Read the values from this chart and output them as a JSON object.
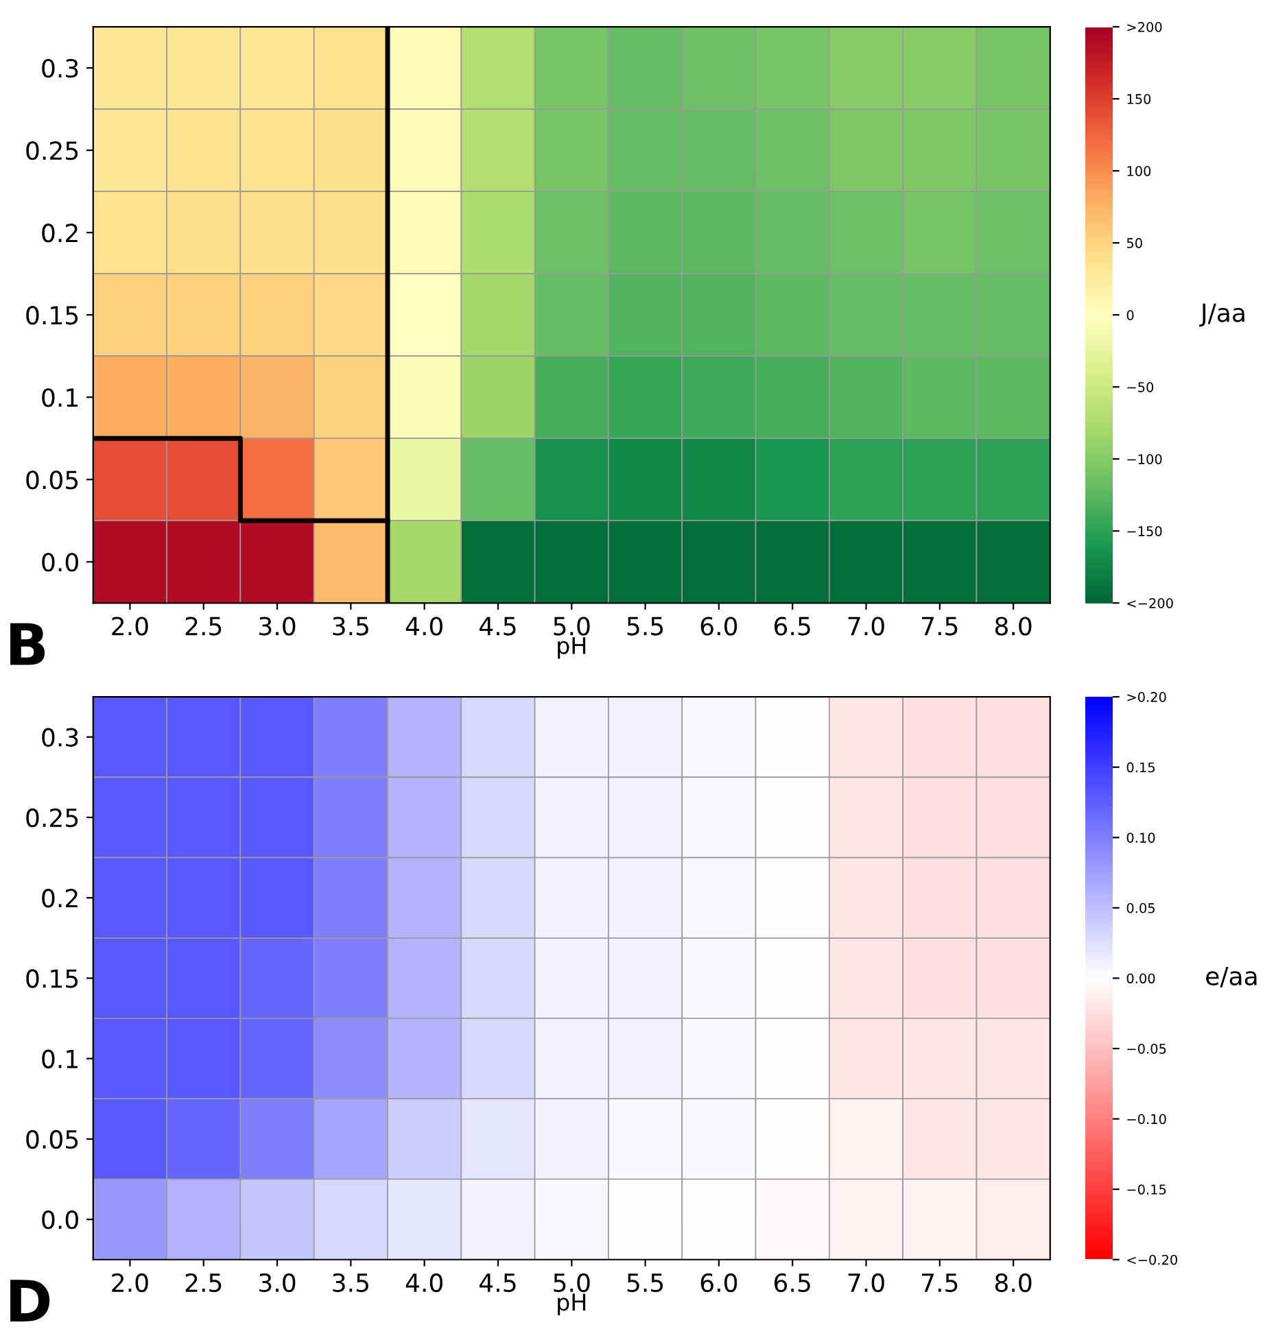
{
  "chart_data": [
    {
      "type": "heatmap",
      "xlabel": "pH",
      "clabel": "J/aa",
      "annotations": [
        "B"
      ],
      "x": [
        2.0,
        2.5,
        3.0,
        3.5,
        4.0,
        4.5,
        5.0,
        5.5,
        6.0,
        6.5,
        7.0,
        7.5,
        8.0
      ],
      "xlim": [
        1.75,
        8.25
      ],
      "xticks": [
        {
          "value": 2,
          "label": "2.0"
        },
        2.5,
        {
          "value": 3,
          "label": "3.0"
        },
        3.5,
        {
          "value": 4,
          "label": "4.0"
        },
        4.5,
        {
          "value": 5,
          "label": "5.0"
        },
        5.5,
        {
          "value": 6,
          "label": "6.0"
        },
        6.5,
        {
          "value": 7,
          "label": "7.0"
        },
        7.5,
        {
          "value": 8,
          "label": "8.0"
        }
      ],
      "ref_lines": [
        {
          "axis": "x",
          "value": 3.75,
          "color": "#000000"
        }
      ],
      "y": [
        0.3,
        0.25,
        0.2,
        0.15,
        0.1,
        0.05,
        0.0
      ],
      "ylim": [
        -0.025,
        0.325
      ],
      "yticks": [
        0.3,
        0.25,
        0.2,
        0.15,
        0.1,
        0.05,
        {
          "value": 0,
          "label": "0.0"
        }
      ],
      "series": [
        {
          "type": "line",
          "color": "#000000",
          "x": [
            1.75,
            2.75,
            2.75,
            3.75
          ],
          "values": [
            0.075,
            0.075,
            0.025,
            0.025
          ]
        }
      ],
      "cells": [
        [
          30,
          30,
          30,
          35,
          5,
          -70,
          -110,
          -120,
          -115,
          -110,
          -100,
          -100,
          -110
        ],
        [
          30,
          35,
          35,
          40,
          5,
          -70,
          -110,
          -120,
          -120,
          -115,
          -105,
          -105,
          -110
        ],
        [
          35,
          40,
          40,
          40,
          5,
          -75,
          -115,
          -125,
          -125,
          -120,
          -115,
          -110,
          -115
        ],
        [
          50,
          50,
          50,
          45,
          0,
          -80,
          -120,
          -130,
          -130,
          -125,
          -120,
          -120,
          -120
        ],
        [
          80,
          80,
          75,
          50,
          -5,
          -85,
          -135,
          -145,
          -140,
          -135,
          -130,
          -125,
          -125
        ],
        [
          140,
          140,
          120,
          60,
          -20,
          -120,
          -165,
          -175,
          -175,
          -160,
          -150,
          -150,
          -150
        ],
        [
          190,
          190,
          190,
          70,
          -80,
          -195,
          -195,
          -195,
          -195,
          -195,
          -195,
          -195,
          -195
        ]
      ],
      "clim": [
        -200,
        200
      ],
      "cticks": [
        {
          "value": 200,
          "label": ">200"
        },
        150,
        100,
        50,
        0,
        {
          "value": -50,
          "label": "−50"
        },
        {
          "value": -100,
          "label": "−100"
        },
        {
          "value": -150,
          "label": "−150"
        },
        {
          "value": -200,
          "label": "<−200"
        }
      ]
    },
    {
      "type": "heatmap",
      "xlabel": "pH",
      "clabel": "e/aa",
      "annotations": [
        "D"
      ],
      "categories": [
        "2.0",
        "2.5",
        "3.0",
        "3.5",
        "4.0",
        "4.5",
        "5.0",
        "5.5",
        "6.0",
        "6.5",
        "7.0",
        "7.5",
        "8.0"
      ],
      "y_categories": [
        "0.3",
        "0.25",
        "0.2",
        "0.15",
        "0.1",
        "0.05",
        "0.0"
      ],
      "cells": [
        [
          0.13,
          0.13,
          0.13,
          0.1,
          0.06,
          0.03,
          0.01,
          0.01,
          0.005,
          0,
          -0.02,
          -0.025,
          -0.025
        ],
        [
          0.13,
          0.13,
          0.13,
          0.1,
          0.06,
          0.03,
          0.01,
          0.01,
          0.005,
          0,
          -0.02,
          -0.025,
          -0.025
        ],
        [
          0.13,
          0.13,
          0.13,
          0.1,
          0.06,
          0.03,
          0.01,
          0.01,
          0.005,
          0,
          -0.02,
          -0.025,
          -0.025
        ],
        [
          0.13,
          0.13,
          0.12,
          0.1,
          0.06,
          0.03,
          0.01,
          0.01,
          0.005,
          0,
          -0.02,
          -0.025,
          -0.025
        ],
        [
          0.13,
          0.13,
          0.12,
          0.09,
          0.06,
          0.03,
          0.01,
          0.01,
          0.005,
          0,
          -0.02,
          -0.02,
          -0.02
        ],
        [
          0.13,
          0.12,
          0.1,
          0.07,
          0.04,
          0.02,
          0.01,
          0.005,
          0.005,
          0,
          -0.01,
          -0.02,
          -0.02
        ],
        [
          0.08,
          0.06,
          0.045,
          0.03,
          0.02,
          0.01,
          0.005,
          0,
          0,
          -0.005,
          -0.01,
          -0.01,
          -0.015
        ]
      ],
      "clim": [
        -0.2,
        0.2
      ],
      "cticks": [
        {
          "value": 0.2,
          "label": ">0.20"
        },
        {
          "value": 0.15,
          "label": "0.15"
        },
        {
          "value": 0.1,
          "label": "0.10"
        },
        {
          "value": 0.05,
          "label": "0.05"
        },
        {
          "value": 0,
          "label": "0.00"
        },
        {
          "value": -0.05,
          "label": "−0.05"
        },
        {
          "value": -0.1,
          "label": "−0.10"
        },
        {
          "value": -0.15,
          "label": "−0.15"
        },
        {
          "value": -0.2,
          "label": "<−0.20"
        }
      ]
    }
  ]
}
